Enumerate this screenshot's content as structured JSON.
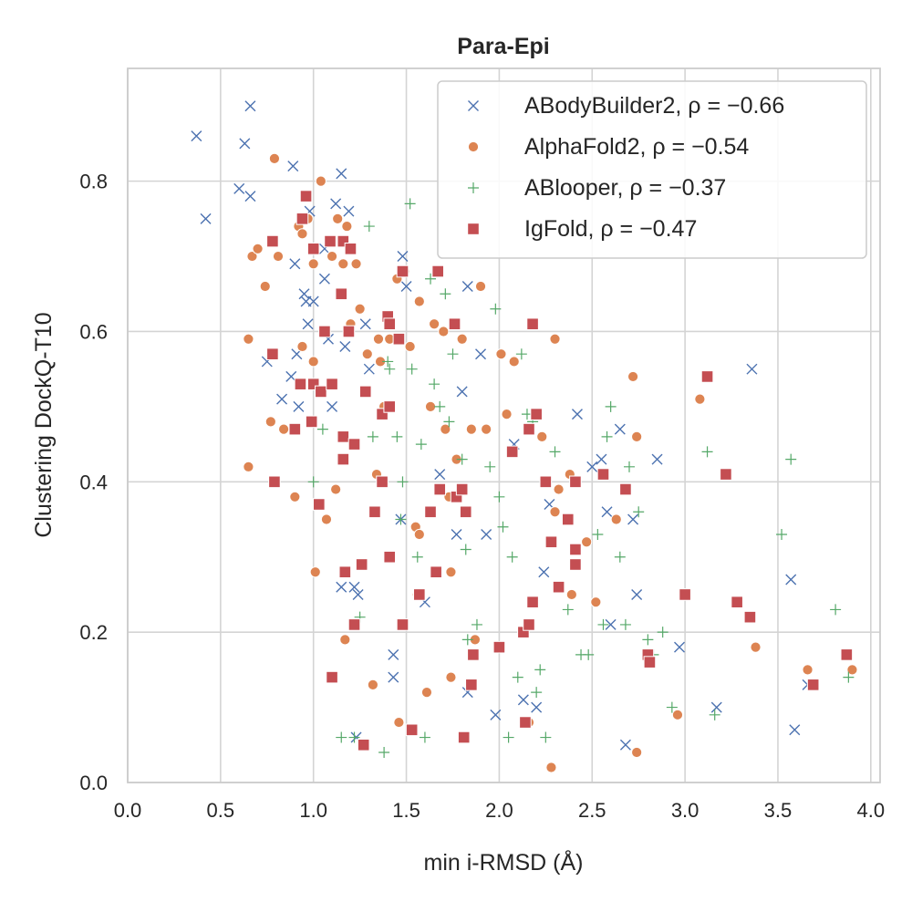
{
  "chart_data": {
    "type": "scatter",
    "title": "Para-Epi",
    "xlabel": "min i-RMSD (Å)",
    "ylabel": "Clustering DockQ-T10",
    "xlim": [
      0.0,
      4.05
    ],
    "ylim": [
      0.0,
      0.95
    ],
    "xticks": [
      "0.0",
      "0.5",
      "1.0",
      "1.5",
      "2.0",
      "2.5",
      "3.0",
      "3.5",
      "4.0"
    ],
    "yticks": [
      "0.0",
      "0.2",
      "0.4",
      "0.6",
      "0.8"
    ],
    "grid": true,
    "legend_position": "top-right",
    "series": [
      {
        "name": "ABodyBuilder2, ρ = −0.66",
        "marker": "x",
        "color": "#4c72b0",
        "points": [
          [
            0.37,
            0.86
          ],
          [
            0.42,
            0.75
          ],
          [
            0.6,
            0.79
          ],
          [
            0.63,
            0.85
          ],
          [
            0.66,
            0.9
          ],
          [
            0.66,
            0.78
          ],
          [
            0.75,
            0.56
          ],
          [
            0.83,
            0.51
          ],
          [
            0.88,
            0.54
          ],
          [
            0.89,
            0.82
          ],
          [
            0.9,
            0.69
          ],
          [
            0.91,
            0.57
          ],
          [
            0.92,
            0.5
          ],
          [
            0.95,
            0.65
          ],
          [
            0.96,
            0.64
          ],
          [
            0.97,
            0.61
          ],
          [
            0.98,
            0.76
          ],
          [
            1.0,
            0.64
          ],
          [
            1.06,
            0.71
          ],
          [
            1.06,
            0.67
          ],
          [
            1.08,
            0.59
          ],
          [
            1.1,
            0.5
          ],
          [
            1.12,
            0.77
          ],
          [
            1.15,
            0.81
          ],
          [
            1.15,
            0.26
          ],
          [
            1.17,
            0.58
          ],
          [
            1.19,
            0.76
          ],
          [
            1.22,
            0.26
          ],
          [
            1.23,
            0.06
          ],
          [
            1.24,
            0.25
          ],
          [
            1.28,
            0.61
          ],
          [
            1.3,
            0.55
          ],
          [
            1.43,
            0.17
          ],
          [
            1.43,
            0.14
          ],
          [
            1.47,
            0.35
          ],
          [
            1.48,
            0.7
          ],
          [
            1.5,
            0.66
          ],
          [
            1.6,
            0.24
          ],
          [
            1.68,
            0.41
          ],
          [
            1.77,
            0.33
          ],
          [
            1.8,
            0.52
          ],
          [
            1.83,
            0.12
          ],
          [
            1.83,
            0.66
          ],
          [
            1.9,
            0.57
          ],
          [
            1.93,
            0.33
          ],
          [
            1.98,
            0.09
          ],
          [
            2.08,
            0.45
          ],
          [
            2.13,
            0.11
          ],
          [
            2.2,
            0.1
          ],
          [
            2.24,
            0.28
          ],
          [
            2.27,
            0.37
          ],
          [
            2.42,
            0.49
          ],
          [
            2.5,
            0.42
          ],
          [
            2.55,
            0.43
          ],
          [
            2.58,
            0.36
          ],
          [
            2.6,
            0.21
          ],
          [
            2.65,
            0.47
          ],
          [
            2.68,
            0.05
          ],
          [
            2.72,
            0.35
          ],
          [
            2.74,
            0.25
          ],
          [
            2.85,
            0.43
          ],
          [
            2.97,
            0.18
          ],
          [
            3.17,
            0.1
          ],
          [
            3.36,
            0.55
          ],
          [
            3.57,
            0.27
          ],
          [
            3.59,
            0.07
          ],
          [
            3.66,
            0.13
          ]
        ]
      },
      {
        "name": "AlphaFold2, ρ = −0.54",
        "marker": "o",
        "color": "#dd8452",
        "points": [
          [
            0.65,
            0.59
          ],
          [
            0.65,
            0.42
          ],
          [
            0.67,
            0.7
          ],
          [
            0.7,
            0.71
          ],
          [
            0.74,
            0.66
          ],
          [
            0.77,
            0.48
          ],
          [
            0.79,
            0.83
          ],
          [
            0.81,
            0.7
          ],
          [
            0.84,
            0.47
          ],
          [
            0.9,
            0.38
          ],
          [
            0.92,
            0.74
          ],
          [
            0.94,
            0.73
          ],
          [
            0.94,
            0.58
          ],
          [
            0.97,
            0.75
          ],
          [
            1.0,
            0.69
          ],
          [
            1.0,
            0.56
          ],
          [
            1.01,
            0.28
          ],
          [
            1.04,
            0.52
          ],
          [
            1.04,
            0.8
          ],
          [
            1.07,
            0.35
          ],
          [
            1.1,
            0.7
          ],
          [
            1.12,
            0.39
          ],
          [
            1.13,
            0.75
          ],
          [
            1.16,
            0.69
          ],
          [
            1.17,
            0.19
          ],
          [
            1.18,
            0.74
          ],
          [
            1.2,
            0.61
          ],
          [
            1.23,
            0.69
          ],
          [
            1.25,
            0.63
          ],
          [
            1.29,
            0.57
          ],
          [
            1.32,
            0.13
          ],
          [
            1.34,
            0.41
          ],
          [
            1.35,
            0.59
          ],
          [
            1.36,
            0.56
          ],
          [
            1.38,
            0.5
          ],
          [
            1.41,
            0.59
          ],
          [
            1.45,
            0.67
          ],
          [
            1.46,
            0.08
          ],
          [
            1.49,
            0.68
          ],
          [
            1.52,
            0.58
          ],
          [
            1.55,
            0.34
          ],
          [
            1.56,
            0.25
          ],
          [
            1.57,
            0.64
          ],
          [
            1.57,
            0.33
          ],
          [
            1.61,
            0.12
          ],
          [
            1.63,
            0.5
          ],
          [
            1.65,
            0.61
          ],
          [
            1.7,
            0.6
          ],
          [
            1.71,
            0.47
          ],
          [
            1.73,
            0.38
          ],
          [
            1.74,
            0.28
          ],
          [
            1.74,
            0.14
          ],
          [
            1.77,
            0.43
          ],
          [
            1.8,
            0.59
          ],
          [
            1.85,
            0.47
          ],
          [
            1.87,
            0.19
          ],
          [
            1.9,
            0.66
          ],
          [
            1.93,
            0.47
          ],
          [
            2.01,
            0.57
          ],
          [
            2.04,
            0.49
          ],
          [
            2.08,
            0.56
          ],
          [
            2.16,
            0.08
          ],
          [
            2.23,
            0.46
          ],
          [
            2.28,
            0.02
          ],
          [
            2.3,
            0.36
          ],
          [
            2.3,
            0.59
          ],
          [
            2.32,
            0.39
          ],
          [
            2.38,
            0.41
          ],
          [
            2.39,
            0.25
          ],
          [
            2.47,
            0.32
          ],
          [
            2.52,
            0.24
          ],
          [
            2.63,
            0.35
          ],
          [
            2.72,
            0.54
          ],
          [
            2.74,
            0.46
          ],
          [
            2.74,
            0.04
          ],
          [
            2.96,
            0.09
          ],
          [
            3.08,
            0.51
          ],
          [
            3.38,
            0.18
          ],
          [
            3.66,
            0.15
          ],
          [
            3.9,
            0.15
          ]
        ]
      },
      {
        "name": "ABlooper, ρ = −0.37",
        "marker": "+",
        "color": "#55a868",
        "points": [
          [
            1.0,
            0.4
          ],
          [
            1.05,
            0.47
          ],
          [
            1.15,
            0.06
          ],
          [
            1.22,
            0.06
          ],
          [
            1.25,
            0.22
          ],
          [
            1.3,
            0.74
          ],
          [
            1.32,
            0.46
          ],
          [
            1.38,
            0.04
          ],
          [
            1.4,
            0.56
          ],
          [
            1.41,
            0.55
          ],
          [
            1.41,
            0.5
          ],
          [
            1.45,
            0.46
          ],
          [
            1.47,
            0.35
          ],
          [
            1.48,
            0.4
          ],
          [
            1.52,
            0.77
          ],
          [
            1.53,
            0.55
          ],
          [
            1.56,
            0.3
          ],
          [
            1.58,
            0.45
          ],
          [
            1.6,
            0.06
          ],
          [
            1.63,
            0.67
          ],
          [
            1.65,
            0.53
          ],
          [
            1.68,
            0.5
          ],
          [
            1.71,
            0.65
          ],
          [
            1.73,
            0.48
          ],
          [
            1.75,
            0.57
          ],
          [
            1.8,
            0.43
          ],
          [
            1.82,
            0.31
          ],
          [
            1.83,
            0.19
          ],
          [
            1.88,
            0.21
          ],
          [
            1.95,
            0.42
          ],
          [
            1.98,
            0.63
          ],
          [
            2.0,
            0.38
          ],
          [
            2.02,
            0.34
          ],
          [
            2.05,
            0.06
          ],
          [
            2.07,
            0.3
          ],
          [
            2.1,
            0.14
          ],
          [
            2.12,
            0.57
          ],
          [
            2.15,
            0.49
          ],
          [
            2.18,
            0.48
          ],
          [
            2.2,
            0.12
          ],
          [
            2.22,
            0.15
          ],
          [
            2.25,
            0.06
          ],
          [
            2.3,
            0.44
          ],
          [
            2.37,
            0.23
          ],
          [
            2.44,
            0.17
          ],
          [
            2.48,
            0.17
          ],
          [
            2.53,
            0.33
          ],
          [
            2.56,
            0.21
          ],
          [
            2.58,
            0.46
          ],
          [
            2.6,
            0.5
          ],
          [
            2.65,
            0.3
          ],
          [
            2.68,
            0.21
          ],
          [
            2.7,
            0.42
          ],
          [
            2.75,
            0.36
          ],
          [
            2.8,
            0.19
          ],
          [
            2.83,
            0.17
          ],
          [
            2.88,
            0.2
          ],
          [
            2.93,
            0.1
          ],
          [
            3.12,
            0.44
          ],
          [
            3.16,
            0.09
          ],
          [
            3.52,
            0.33
          ],
          [
            3.57,
            0.43
          ],
          [
            3.81,
            0.23
          ],
          [
            3.88,
            0.14
          ]
        ]
      },
      {
        "name": "IgFold, ρ = −0.47",
        "marker": "s",
        "color": "#c44e52",
        "points": [
          [
            0.78,
            0.72
          ],
          [
            0.78,
            0.57
          ],
          [
            0.79,
            0.4
          ],
          [
            0.9,
            0.47
          ],
          [
            0.93,
            0.53
          ],
          [
            0.94,
            0.75
          ],
          [
            0.96,
            0.78
          ],
          [
            0.99,
            0.48
          ],
          [
            1.0,
            0.71
          ],
          [
            1.0,
            0.53
          ],
          [
            1.03,
            0.37
          ],
          [
            1.04,
            0.52
          ],
          [
            1.06,
            0.6
          ],
          [
            1.09,
            0.72
          ],
          [
            1.1,
            0.14
          ],
          [
            1.1,
            0.53
          ],
          [
            1.15,
            0.65
          ],
          [
            1.16,
            0.72
          ],
          [
            1.16,
            0.46
          ],
          [
            1.16,
            0.43
          ],
          [
            1.17,
            0.28
          ],
          [
            1.19,
            0.6
          ],
          [
            1.2,
            0.71
          ],
          [
            1.22,
            0.21
          ],
          [
            1.22,
            0.45
          ],
          [
            1.26,
            0.29
          ],
          [
            1.27,
            0.05
          ],
          [
            1.28,
            0.52
          ],
          [
            1.33,
            0.36
          ],
          [
            1.37,
            0.4
          ],
          [
            1.37,
            0.49
          ],
          [
            1.4,
            0.62
          ],
          [
            1.41,
            0.5
          ],
          [
            1.41,
            0.61
          ],
          [
            1.41,
            0.3
          ],
          [
            1.46,
            0.59
          ],
          [
            1.48,
            0.68
          ],
          [
            1.48,
            0.21
          ],
          [
            1.53,
            0.07
          ],
          [
            1.57,
            0.25
          ],
          [
            1.63,
            0.36
          ],
          [
            1.66,
            0.28
          ],
          [
            1.67,
            0.68
          ],
          [
            1.68,
            0.39
          ],
          [
            1.76,
            0.61
          ],
          [
            1.77,
            0.38
          ],
          [
            1.8,
            0.39
          ],
          [
            1.81,
            0.06
          ],
          [
            1.82,
            0.36
          ],
          [
            1.85,
            0.13
          ],
          [
            1.86,
            0.17
          ],
          [
            2.0,
            0.18
          ],
          [
            2.07,
            0.44
          ],
          [
            2.13,
            0.2
          ],
          [
            2.14,
            0.08
          ],
          [
            2.16,
            0.21
          ],
          [
            2.16,
            0.47
          ],
          [
            2.18,
            0.24
          ],
          [
            2.18,
            0.61
          ],
          [
            2.2,
            0.49
          ],
          [
            2.25,
            0.4
          ],
          [
            2.28,
            0.32
          ],
          [
            2.32,
            0.26
          ],
          [
            2.37,
            0.35
          ],
          [
            2.41,
            0.31
          ],
          [
            2.41,
            0.29
          ],
          [
            2.41,
            0.4
          ],
          [
            2.56,
            0.41
          ],
          [
            2.68,
            0.39
          ],
          [
            2.8,
            0.17
          ],
          [
            2.81,
            0.16
          ],
          [
            3.0,
            0.25
          ],
          [
            3.12,
            0.54
          ],
          [
            3.22,
            0.41
          ],
          [
            3.28,
            0.24
          ],
          [
            3.35,
            0.22
          ],
          [
            3.69,
            0.13
          ],
          [
            3.87,
            0.17
          ]
        ]
      }
    ]
  }
}
